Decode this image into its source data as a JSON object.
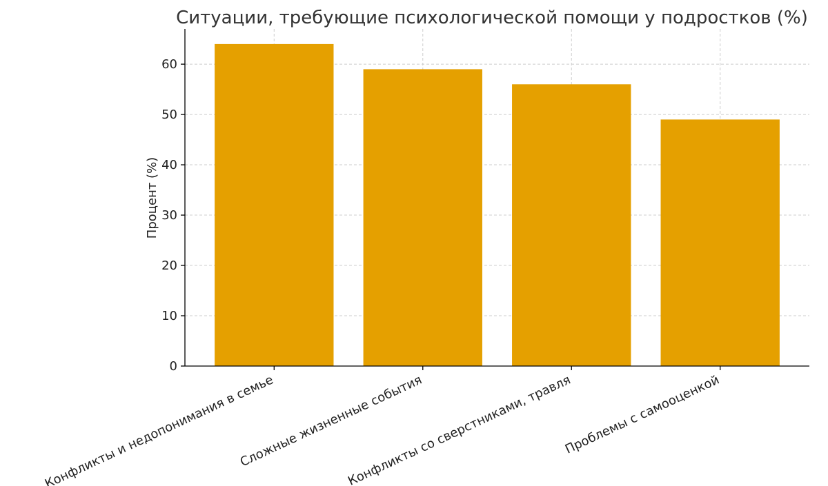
{
  "chart_data": {
    "type": "bar",
    "title": "Ситуации, требующие психологической помощи у подростков (%)",
    "xlabel": "",
    "ylabel": "Процент (%)",
    "categories": [
      "Конфликты и недопонимания в семье",
      "Сложные жизненные события",
      "Конфликты со сверстниками, травля",
      "Проблемы с самооценкой"
    ],
    "values": [
      64,
      59,
      56,
      49
    ],
    "ylim": [
      0,
      67
    ],
    "yticks": [
      0,
      10,
      20,
      30,
      40,
      50,
      60
    ],
    "grid": true,
    "bar_color": "#E5A000",
    "x_tick_rotation": "-25"
  }
}
